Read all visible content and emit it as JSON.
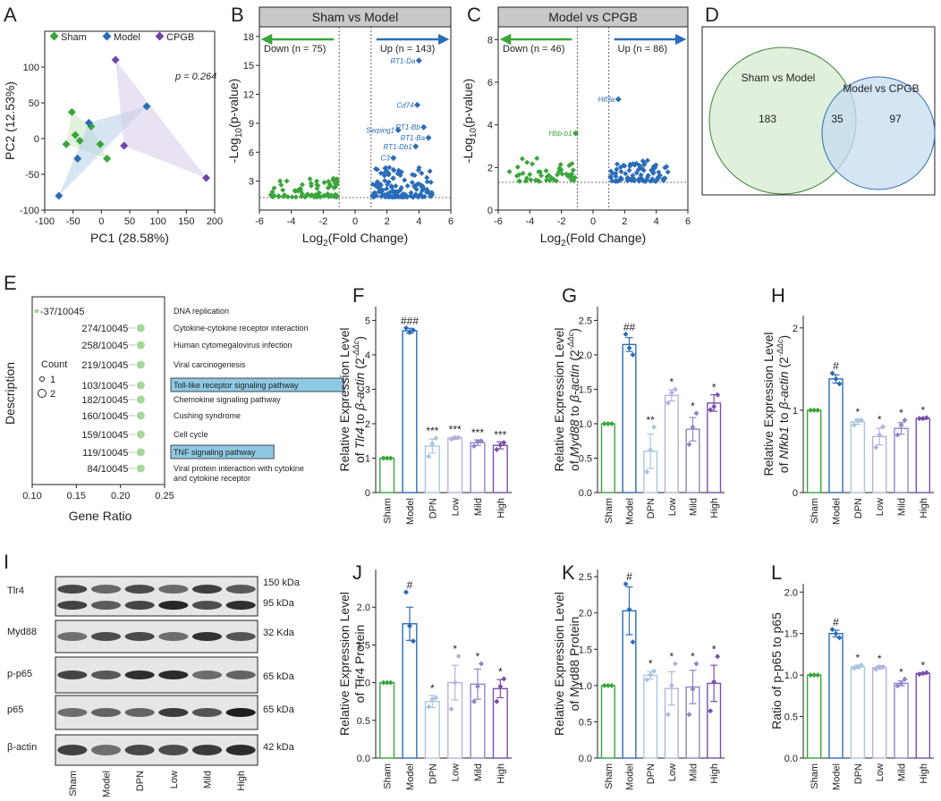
{
  "colors": {
    "sham": "#3aa53a",
    "model": "#2b6cb8",
    "cpgb": "#6f45a8",
    "dpn": "#aac6e2",
    "low": "#b3b3dd",
    "mild": "#8e86c7",
    "high": "#7a50ad",
    "sham_fill": "#c8e6c0",
    "model_fill": "#b6d0ea",
    "cpgb_fill": "#d6cbe8",
    "highlight": "#8ec9e4"
  },
  "panel_labels": [
    "A",
    "B",
    "C",
    "D",
    "E",
    "F",
    "G",
    "H",
    "I",
    "J",
    "K",
    "L"
  ],
  "chart_data": [
    {
      "id": "A",
      "type": "scatter",
      "xlabel": "PC1 (28.58%)",
      "ylabel": "PC2 (12.53%)",
      "xlim": [
        -100,
        200
      ],
      "ylim": [
        -100,
        150
      ],
      "xticks": [
        "-100",
        "-50",
        "0",
        "50",
        "100",
        "150",
        "200"
      ],
      "yticks": [
        "-100",
        "-50",
        "0",
        "50",
        "100"
      ],
      "annotation": "p = 0.264",
      "legend": [
        "Sham",
        "Model",
        "CPGB"
      ],
      "series": [
        {
          "name": "Sham",
          "points": [
            [
              -52,
              37
            ],
            [
              -46,
              5
            ],
            [
              -38,
              -3
            ],
            [
              -62,
              -8
            ],
            [
              -18,
              17
            ],
            [
              -2,
              -8
            ],
            [
              10,
              -28
            ]
          ]
        },
        {
          "name": "Model",
          "points": [
            [
              -75,
              -80
            ],
            [
              -22,
              22
            ],
            [
              -42,
              -28
            ],
            [
              80,
              45
            ]
          ]
        },
        {
          "name": "CPGB",
          "points": [
            [
              25,
              110
            ],
            [
              40,
              -10
            ],
            [
              185,
              -55
            ]
          ]
        }
      ]
    },
    {
      "id": "B",
      "type": "scatter",
      "title": "Sham vs Model",
      "xlabel": "Log2(Fold Change)",
      "ylabel": "-Log10(p-value)",
      "xlim": [
        -6,
        6
      ],
      "ylim": [
        0,
        19
      ],
      "xticks": [
        "-6",
        "-4",
        "-2",
        "0",
        "2",
        "4",
        "6"
      ],
      "yticks": [
        "3",
        "6",
        "9",
        "12",
        "15",
        "18"
      ],
      "down_label": "Down (n = 75)",
      "up_label": "Up (n = 143)",
      "labeled_points": [
        {
          "label": "RT1-Da",
          "x": 4.0,
          "y": 15.5
        },
        {
          "label": "Cd74",
          "x": 3.9,
          "y": 10.9
        },
        {
          "label": "RT1-Bb",
          "x": 4.3,
          "y": 8.6
        },
        {
          "label": "Serping1",
          "x": 2.7,
          "y": 8.3
        },
        {
          "label": "RT1-Ba",
          "x": 4.6,
          "y": 7.5
        },
        {
          "label": "RT1-Db1",
          "x": 3.8,
          "y": 6.6
        },
        {
          "label": "C3",
          "x": 2.4,
          "y": 5.4
        }
      ]
    },
    {
      "id": "C",
      "type": "scatter",
      "title": "Model vs CPGB",
      "xlabel": "Log2(Fold Change)",
      "ylabel": "-Log10(p-value)",
      "xlim": [
        -6,
        6
      ],
      "ylim": [
        0,
        8.6
      ],
      "xticks": [
        "-6",
        "-4",
        "-2",
        "0",
        "2",
        "4",
        "6"
      ],
      "yticks": [
        "0",
        "2",
        "4",
        "6",
        "8"
      ],
      "down_label": "Down (n = 46)",
      "up_label": "Up (n = 86)",
      "labeled_points": [
        {
          "label": "Hif3a",
          "x": 1.6,
          "y": 5.2
        },
        {
          "label": "Hbb-b1",
          "x": -1.1,
          "y": 3.6
        }
      ]
    },
    {
      "id": "D",
      "type": "venn",
      "sets": [
        "Sham vs Model",
        "Model vs CPGB"
      ],
      "values": {
        "left_only": "183",
        "overlap": "35",
        "right_only": "97"
      }
    },
    {
      "id": "E",
      "type": "dot",
      "xlabel": "Gene Ratio",
      "ylabel": "Description",
      "xlim": [
        0.1,
        0.25
      ],
      "xticks": [
        "0.10",
        "0.15",
        "0.20",
        "0.25"
      ],
      "legend_title": "Count",
      "legend_sizes": [
        "1",
        "2"
      ],
      "rows": [
        {
          "label": "DNA replication",
          "ratio_text": "-37/10045",
          "x": 0.105,
          "count": 1
        },
        {
          "label": "Cytokine-cytokine receptor interaction",
          "ratio_text": "274/10045",
          "x": 0.223,
          "count": 2
        },
        {
          "label": "Human cytomegalovirus infection",
          "ratio_text": "258/10045",
          "x": 0.223,
          "count": 2
        },
        {
          "label": "Viral carcinogenesis",
          "ratio_text": "219/10045",
          "x": 0.223,
          "count": 2
        },
        {
          "label": "Toll-like receptor signaling pathway",
          "ratio_text": "103/10045",
          "x": 0.223,
          "count": 2,
          "highlight": true
        },
        {
          "label": "Chemokine signaling pathway",
          "ratio_text": "182/10045",
          "x": 0.223,
          "count": 2
        },
        {
          "label": "Cushing syndrome",
          "ratio_text": "160/10045",
          "x": 0.223,
          "count": 2
        },
        {
          "label": "Cell cycle",
          "ratio_text": "159/10045",
          "x": 0.223,
          "count": 2
        },
        {
          "label": "TNF signaling pathway",
          "ratio_text": "119/10045",
          "x": 0.223,
          "count": 2,
          "highlight": true
        },
        {
          "label": "Viral protein interaction with cytokine",
          "label2": "and cytokine receptor",
          "ratio_text": "84/10045",
          "x": 0.223,
          "count": 2
        }
      ]
    },
    {
      "id": "F",
      "type": "bar",
      "ylabel_parts": [
        "Relative Expression Level",
        "of ",
        "Tlr4",
        " to ",
        "β-actin",
        " (2",
        "-ΔΔc",
        ")"
      ],
      "ylim": [
        0,
        5.4
      ],
      "yticks": [
        "0",
        "1",
        "2",
        "3",
        "4",
        "5"
      ],
      "categories": [
        "Sham",
        "Model",
        "DPN",
        "Low",
        "Mild",
        "High"
      ],
      "values": [
        1.0,
        4.7,
        1.35,
        1.58,
        1.45,
        1.37
      ],
      "errors": [
        0.0,
        0.07,
        0.2,
        0.04,
        0.08,
        0.1
      ],
      "points": [
        [
          1,
          1,
          1
        ],
        [
          4.78,
          4.65,
          4.72
        ],
        [
          1.05,
          1.42,
          1.58
        ],
        [
          1.55,
          1.6,
          1.6
        ],
        [
          1.35,
          1.48,
          1.5
        ],
        [
          1.25,
          1.38,
          1.45
        ]
      ],
      "marks": [
        "",
        "###",
        "***",
        "***",
        "***",
        "***"
      ]
    },
    {
      "id": "G",
      "type": "bar",
      "ylabel_parts": [
        "Relative Expression Level",
        "of ",
        "Myd88",
        " to ",
        "β-actin",
        " (2",
        "-ΔΔc",
        ")"
      ],
      "ylim": [
        0,
        2.7
      ],
      "yticks": [
        "0.0",
        "0.5",
        "1.0",
        "1.5",
        "2.0",
        "2.5"
      ],
      "categories": [
        "Sham",
        "Model",
        "DPN",
        "Low",
        "Mild",
        "High"
      ],
      "values": [
        1.0,
        2.15,
        0.6,
        1.41,
        0.92,
        1.3
      ],
      "errors": [
        0.0,
        0.1,
        0.25,
        0.08,
        0.17,
        0.12
      ],
      "points": [
        [
          1,
          1,
          1
        ],
        [
          2.3,
          2.1,
          2.0
        ],
        [
          0.3,
          0.62,
          0.95
        ],
        [
          1.3,
          1.45,
          1.5
        ],
        [
          0.7,
          0.95,
          1.15
        ],
        [
          1.2,
          1.25,
          1.42
        ]
      ],
      "marks": [
        "",
        "##",
        "**",
        "*",
        "*",
        "*"
      ]
    },
    {
      "id": "H",
      "type": "bar",
      "ylabel_parts": [
        "Relative Expression Level",
        "of ",
        "Nfkb1",
        " to ",
        "β-actin",
        " (2",
        "-ΔΔc",
        ")"
      ],
      "ylim": [
        0,
        2.15
      ],
      "yticks": [
        "0",
        "1",
        "2"
      ],
      "categories": [
        "Sham",
        "Model",
        "DPN",
        "Low",
        "Mild",
        "High"
      ],
      "values": [
        1.0,
        1.38,
        0.86,
        0.68,
        0.78,
        0.9
      ],
      "errors": [
        0.0,
        0.05,
        0.03,
        0.1,
        0.07,
        0.01
      ],
      "points": [
        [
          1,
          1,
          1
        ],
        [
          1.45,
          1.38,
          1.32
        ],
        [
          0.82,
          0.88,
          0.88
        ],
        [
          0.55,
          0.7,
          0.8
        ],
        [
          0.7,
          0.82,
          0.88
        ],
        [
          0.9,
          0.9,
          0.91
        ]
      ],
      "marks": [
        "",
        "#",
        "*",
        "*",
        "*",
        "*"
      ]
    },
    {
      "id": "J",
      "type": "bar",
      "ylabel_parts": [
        "Relative Expression Level",
        "of Tlr4 Protein"
      ],
      "ylim": [
        0,
        2.5
      ],
      "yticks": [
        "0.0",
        "0.5",
        "1.0",
        "1.5",
        "2.0"
      ],
      "categories": [
        "Sham",
        "Model",
        "DPN",
        "Low",
        "Mild",
        "High"
      ],
      "values": [
        1.0,
        1.78,
        0.75,
        1.0,
        0.98,
        0.92
      ],
      "errors": [
        0.0,
        0.22,
        0.08,
        0.23,
        0.2,
        0.12
      ],
      "points": [
        [
          1,
          1,
          1
        ],
        [
          2.2,
          1.75,
          1.55
        ],
        [
          0.68,
          0.78,
          0.8
        ],
        [
          0.65,
          1.0,
          1.35
        ],
        [
          0.75,
          0.95,
          1.25
        ],
        [
          0.75,
          0.95,
          1.05
        ]
      ],
      "marks": [
        "",
        "#",
        "*",
        "*",
        "*",
        "*"
      ]
    },
    {
      "id": "K",
      "type": "bar",
      "ylabel_parts": [
        "Relative Expression Level",
        "of Myd88 Protein"
      ],
      "ylim": [
        0,
        2.6
      ],
      "yticks": [
        "0.0",
        "0.5",
        "1.0",
        "1.5",
        "2.0",
        "2.5"
      ],
      "categories": [
        "Sham",
        "Model",
        "DPN",
        "Low",
        "Mild",
        "High"
      ],
      "values": [
        1.0,
        2.03,
        1.14,
        0.96,
        0.98,
        1.03
      ],
      "errors": [
        0.0,
        0.33,
        0.05,
        0.23,
        0.23,
        0.25
      ],
      "points": [
        [
          1,
          1,
          1
        ],
        [
          2.4,
          2.05,
          1.6
        ],
        [
          1.08,
          1.15,
          1.2
        ],
        [
          0.6,
          1.0,
          1.3
        ],
        [
          0.6,
          0.95,
          1.3
        ],
        [
          0.65,
          1.05,
          1.4
        ]
      ],
      "marks": [
        "",
        "#",
        "*",
        "*",
        "*",
        "*"
      ]
    },
    {
      "id": "L",
      "type": "bar",
      "ylabel_parts": [
        "Ratio of p-p65 to p65"
      ],
      "ylim": [
        0,
        2.1
      ],
      "yticks": [
        "0.0",
        "0.5",
        "1.0",
        "1.5",
        "2.0"
      ],
      "categories": [
        "Sham",
        "Model",
        "DPN",
        "Low",
        "Mild",
        "High"
      ],
      "values": [
        1.0,
        1.5,
        1.1,
        1.09,
        0.9,
        1.02
      ],
      "errors": [
        0.0,
        0.04,
        0.02,
        0.02,
        0.03,
        0.01
      ],
      "points": [
        [
          1,
          1,
          1
        ],
        [
          1.55,
          1.5,
          1.45
        ],
        [
          1.08,
          1.1,
          1.12
        ],
        [
          1.07,
          1.1,
          1.1
        ],
        [
          0.87,
          0.9,
          0.95
        ],
        [
          1.01,
          1.02,
          1.03
        ]
      ],
      "marks": [
        "",
        "#",
        "*",
        "*",
        "*",
        "*"
      ]
    }
  ],
  "blot": {
    "rows": [
      {
        "name": "Tlr4",
        "sizes": [
          "150 kDa",
          "95 kDa"
        ]
      },
      {
        "name": "Myd88",
        "sizes": [
          "32 Kda"
        ]
      },
      {
        "name": "p-p65",
        "sizes": [
          "65 kDa"
        ]
      },
      {
        "name": "p65",
        "sizes": [
          "65 kDa"
        ]
      },
      {
        "name": "β-actin",
        "sizes": [
          "42 kDa"
        ]
      }
    ],
    "lanes": [
      "Sham",
      "Model",
      "DPN",
      "Low",
      "Mild",
      "High"
    ]
  }
}
